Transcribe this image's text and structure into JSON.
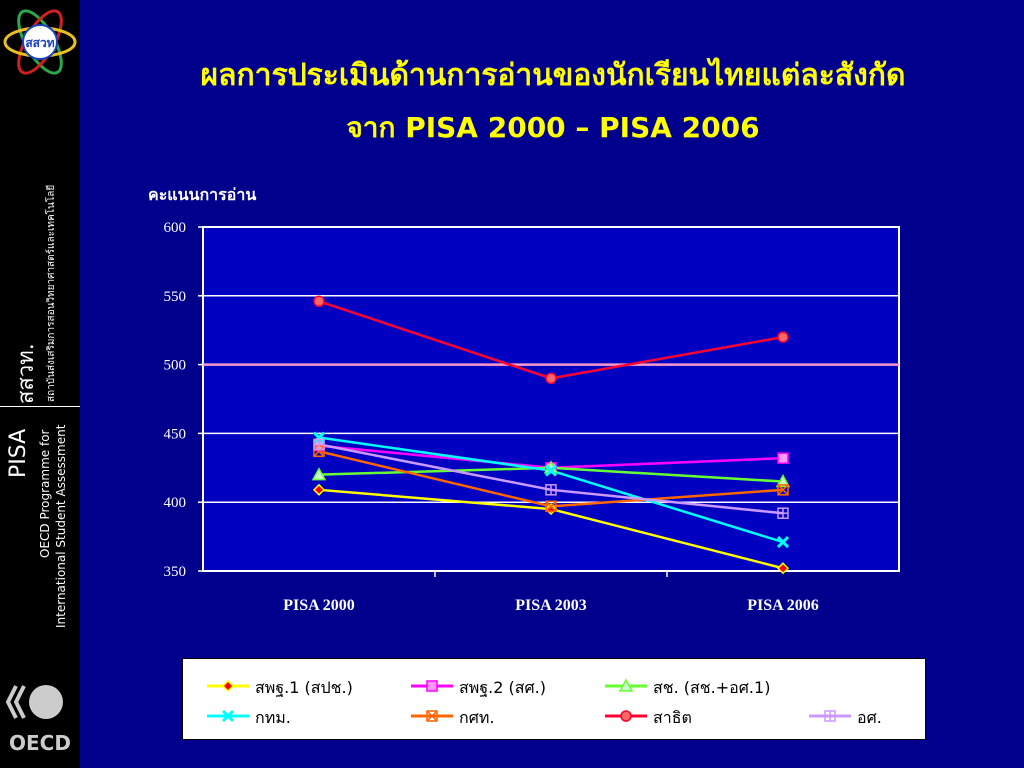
{
  "sidebar": {
    "logo_text": "สสวท",
    "org_short": "สสวท.",
    "org_full": "สถาบันส่งเสริมการสอนวิทยาศาสตร์และเทคโนโลยี",
    "pisa": "PISA",
    "pisa_line1": "OECD Programme for",
    "pisa_line2": "International Student Assessment",
    "oecd": "OECD"
  },
  "slide": {
    "title_line1": "ผลการประเมินด้านการอ่านของนักเรียนไทยแต่ละสังกัด",
    "title_line2": "จาก PISA 2000 – PISA 2006"
  },
  "colors": {
    "background": "#00008c",
    "plot_area": "#0000c0",
    "title": "#ffff00",
    "reference_line": "#ff99cc"
  },
  "chart_data": {
    "type": "line",
    "ylabel": "คะแนนการอ่าน",
    "xlabel": "",
    "categories": [
      "PISA 2000",
      "PISA 2003",
      "PISA 2006"
    ],
    "ylim": [
      350,
      600
    ],
    "yticks": [
      350,
      400,
      450,
      500,
      550,
      600
    ],
    "grid": true,
    "reference_line": 500,
    "legend_position": "bottom",
    "series": [
      {
        "name": "สพฐ.1 (สปช.)",
        "values": [
          409,
          395,
          352
        ],
        "color": "#ffff00",
        "marker": "diamond",
        "marker_fill": "#ff0000"
      },
      {
        "name": "สพฐ.2 (สศ.)",
        "values": [
          441,
          425,
          432
        ],
        "color": "#ff00ff",
        "marker": "square",
        "marker_fill": "#ff99ff"
      },
      {
        "name": "สช.  (สช.+อศ.1)",
        "values": [
          420,
          425,
          415
        ],
        "color": "#66ff33",
        "marker": "triangle",
        "marker_fill": "#ccffcc"
      },
      {
        "name": "กทม.",
        "values": [
          447,
          423,
          371
        ],
        "color": "#00ffff",
        "marker": "x",
        "marker_fill": "#00ffff"
      },
      {
        "name": "กศท.",
        "values": [
          437,
          397,
          409
        ],
        "color": "#ff6600",
        "marker": "boxx",
        "marker_fill": "#ff6600"
      },
      {
        "name": "สาธิต",
        "values": [
          546,
          490,
          520
        ],
        "color": "#ff0033",
        "marker": "circle",
        "marker_fill": "#ff6666"
      },
      {
        "name": "อศ.",
        "values": [
          442,
          409,
          392
        ],
        "color": "#cc99ff",
        "marker": "boxplus",
        "marker_fill": "#cc99ff"
      }
    ]
  }
}
